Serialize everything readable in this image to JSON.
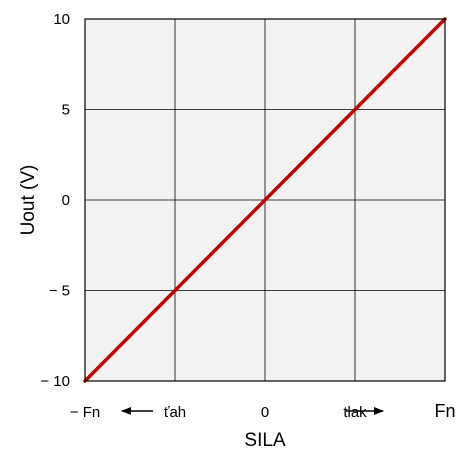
{
  "chart_data": {
    "type": "line",
    "xlabel": "SILA",
    "ylabel": "Uout (V)",
    "xlim": [
      -10,
      10
    ],
    "ylim": [
      -10,
      10
    ],
    "grid": true,
    "x_tick_labels": [
      {
        "x": -10,
        "label": "− Fn"
      },
      {
        "x": -5,
        "label": "ťah"
      },
      {
        "x": 0,
        "label": "0"
      },
      {
        "x": 5,
        "label": "tlak"
      },
      {
        "x": 10,
        "label": "Fn"
      }
    ],
    "y_ticks": [
      10,
      5,
      0,
      -5,
      -10
    ],
    "y_tick_labels": [
      "10",
      "5",
      "0",
      "− 5",
      "− 10"
    ],
    "series": [
      {
        "x": [
          -10,
          10
        ],
        "y": [
          -10,
          10
        ],
        "color": "#c00000"
      }
    ],
    "plot_background": "#f2f2f2",
    "grid_color": "#000000"
  }
}
